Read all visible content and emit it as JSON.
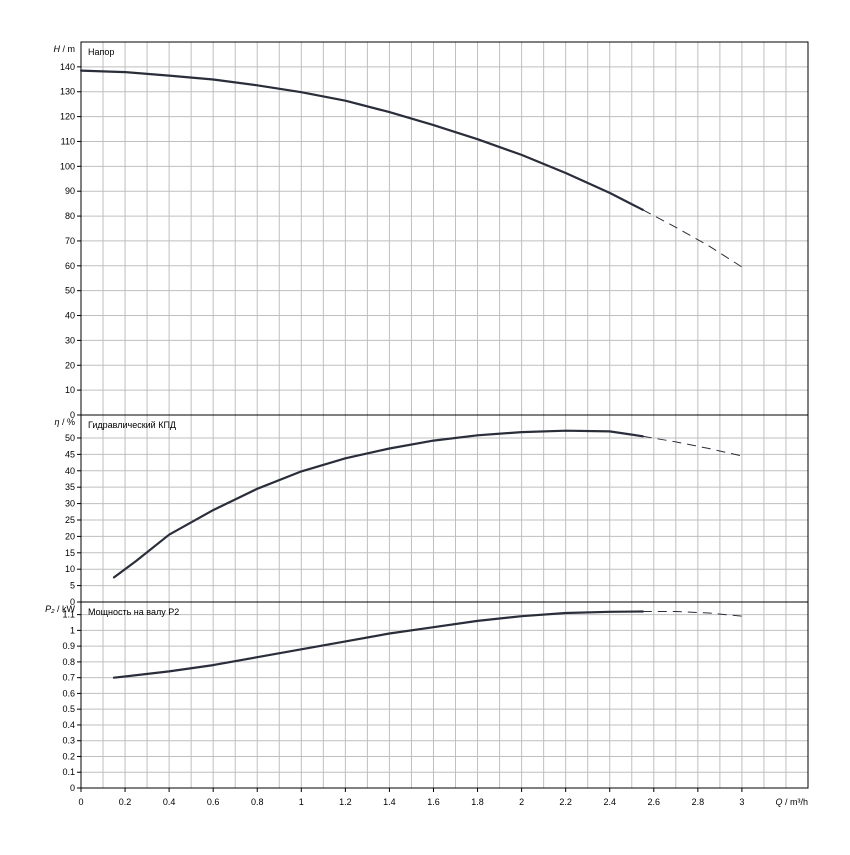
{
  "chart_data": [
    {
      "type": "line",
      "title": "Напор",
      "ylabel_sym": "H",
      "ylabel_unit": "m",
      "ylim": [
        0,
        150
      ],
      "yticks": [
        0,
        10,
        20,
        30,
        40,
        50,
        60,
        70,
        80,
        90,
        100,
        110,
        120,
        130,
        140
      ],
      "ytick_labels": [
        "0",
        "10",
        "20",
        "30",
        "40",
        "50",
        "60",
        "70",
        "80",
        "90",
        "100",
        "110",
        "120",
        "130",
        "140"
      ],
      "series": [
        {
          "solid": [
            [
              0,
              138.5
            ],
            [
              0.2,
              137.9
            ],
            [
              0.4,
              136.5
            ],
            [
              0.6,
              134.9
            ],
            [
              0.8,
              132.6
            ],
            [
              1.0,
              129.8
            ],
            [
              1.2,
              126.4
            ],
            [
              1.4,
              121.8
            ],
            [
              1.6,
              116.6
            ],
            [
              1.8,
              110.9
            ],
            [
              2.0,
              104.6
            ],
            [
              2.2,
              97.3
            ],
            [
              2.4,
              89.3
            ],
            [
              2.55,
              82.5
            ]
          ],
          "dashed": [
            [
              2.55,
              82.5
            ],
            [
              2.7,
              75.5
            ],
            [
              2.85,
              68.0
            ],
            [
              3.0,
              59.5
            ]
          ]
        }
      ]
    },
    {
      "type": "line",
      "title": "Гидравлический КПД",
      "ylabel_sym": "η",
      "ylabel_unit": "%",
      "ylim": [
        0,
        57
      ],
      "yticks": [
        0,
        5,
        10,
        15,
        20,
        25,
        30,
        35,
        40,
        45,
        50
      ],
      "ytick_labels": [
        "0",
        "5",
        "10",
        "15",
        "20",
        "25",
        "30",
        "35",
        "40",
        "45",
        "50"
      ],
      "series": [
        {
          "solid": [
            [
              0.15,
              7.5
            ],
            [
              0.25,
              12.5
            ],
            [
              0.4,
              20.5
            ],
            [
              0.6,
              28.0
            ],
            [
              0.8,
              34.5
            ],
            [
              1.0,
              39.8
            ],
            [
              1.2,
              43.8
            ],
            [
              1.4,
              46.8
            ],
            [
              1.6,
              49.2
            ],
            [
              1.8,
              50.8
            ],
            [
              2.0,
              51.8
            ],
            [
              2.2,
              52.2
            ],
            [
              2.4,
              52.0
            ],
            [
              2.55,
              50.5
            ]
          ],
          "dashed": [
            [
              2.55,
              50.5
            ],
            [
              2.7,
              48.8
            ],
            [
              2.85,
              46.8
            ],
            [
              3.0,
              44.5
            ]
          ]
        }
      ]
    },
    {
      "type": "line",
      "title": "Мощность на валу P2",
      "ylabel_sym": "P₂",
      "ylabel_unit": "kW",
      "ylim": [
        0,
        1.18
      ],
      "yticks": [
        0,
        0.1,
        0.2,
        0.3,
        0.4,
        0.5,
        0.6,
        0.7,
        0.8,
        0.9,
        1.0,
        1.1
      ],
      "ytick_labels": [
        "0",
        "0.1",
        "0.2",
        "0.3",
        "0.4",
        "0.5",
        "0.6",
        "0.7",
        "0.8",
        "0.9",
        "1",
        "1.1"
      ],
      "series": [
        {
          "solid": [
            [
              0.15,
              0.7
            ],
            [
              0.4,
              0.74
            ],
            [
              0.6,
              0.78
            ],
            [
              0.8,
              0.83
            ],
            [
              1.0,
              0.88
            ],
            [
              1.2,
              0.93
            ],
            [
              1.4,
              0.98
            ],
            [
              1.6,
              1.02
            ],
            [
              1.8,
              1.06
            ],
            [
              2.0,
              1.09
            ],
            [
              2.2,
              1.11
            ],
            [
              2.4,
              1.118
            ],
            [
              2.55,
              1.12
            ]
          ],
          "dashed": [
            [
              2.55,
              1.12
            ],
            [
              2.7,
              1.12
            ],
            [
              2.85,
              1.11
            ],
            [
              3.0,
              1.09
            ]
          ]
        }
      ]
    }
  ],
  "x_axis": {
    "sym": "Q",
    "unit": "m³/h",
    "xlim": [
      0,
      3.3
    ],
    "xticks": [
      0,
      0.2,
      0.4,
      0.6,
      0.8,
      1.0,
      1.2,
      1.4,
      1.6,
      1.8,
      2.0,
      2.2,
      2.4,
      2.6,
      2.8,
      3.0
    ],
    "xtick_labels": [
      "0",
      "0.2",
      "0.4",
      "0.6",
      "0.8",
      "1",
      "1.2",
      "1.4",
      "1.6",
      "1.8",
      "2",
      "2.2",
      "2.4",
      "2.6",
      "2.8",
      "3"
    ]
  },
  "colors": {
    "curve": "#2a2e3a",
    "grid": "#bfbfbf",
    "frame": "#000000"
  }
}
